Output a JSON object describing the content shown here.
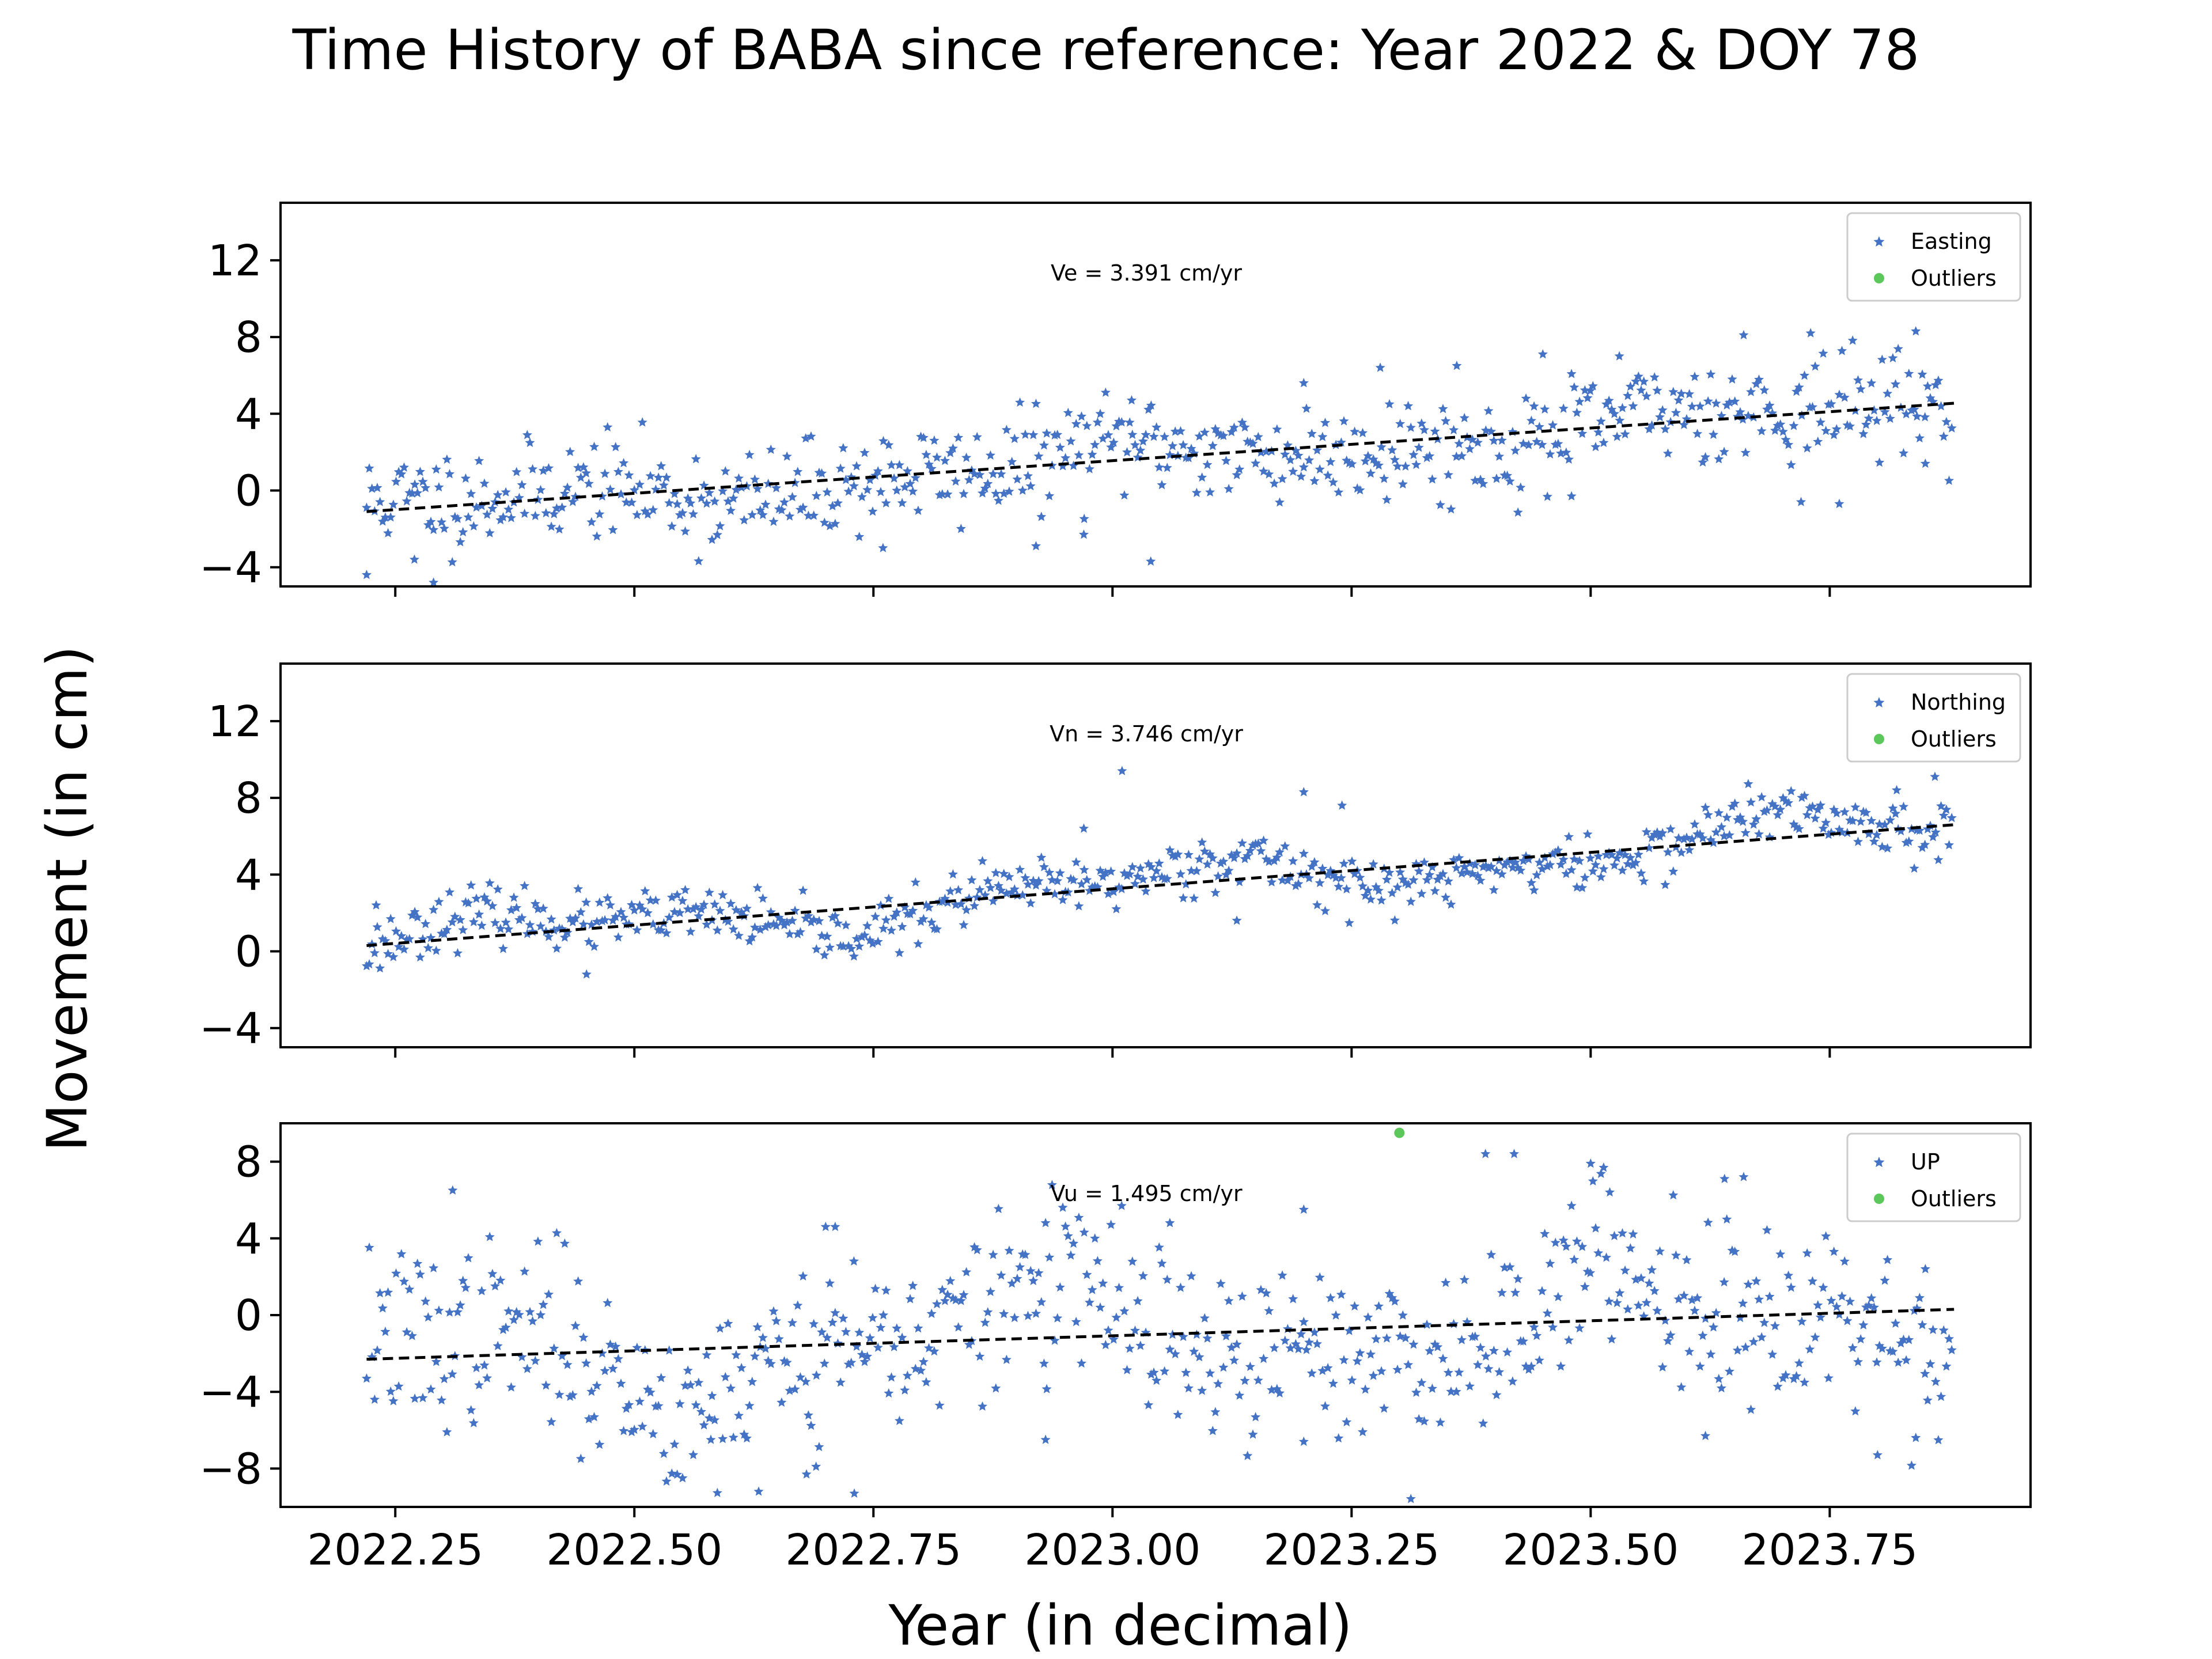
{
  "title": "Time History of BABA since reference: Year 2022 & DOY 78",
  "xlabel": "Year (in decimal)",
  "ylabel": "Movement (in cm)",
  "colors": {
    "data": "#4472c4",
    "outlier": "#5cc85c",
    "trend": "#000000"
  },
  "chart_data": [
    {
      "type": "scatter",
      "component": "Easting",
      "velocity_text": "Ve =  3.391 cm/yr",
      "legend": [
        "Easting",
        "Outliers"
      ],
      "xlim": [
        2022.13,
        2023.96
      ],
      "ylim": [
        -5,
        15
      ],
      "yticks": [
        -4,
        0,
        4,
        8,
        12
      ],
      "xticks": [
        2022.25,
        2022.5,
        2022.75,
        2023.0,
        2023.25,
        2023.5,
        2023.75
      ],
      "xtick_labels": [],
      "trend": {
        "x": [
          2022.22,
          2023.88
        ],
        "y": [
          -1.1,
          4.55
        ]
      },
      "series": [
        {
          "name": "Easting",
          "noise": 1.3,
          "wave": 0.6,
          "seed": 11,
          "extremes": [
            [
              2022.22,
              -4.4
            ],
            [
              2022.29,
              -4.8
            ],
            [
              2022.27,
              -3.6
            ],
            [
              2022.76,
              -3.0
            ],
            [
              2022.92,
              -2.9
            ],
            [
              2023.04,
              -3.7
            ],
            [
              2022.97,
              -2.3
            ],
            [
              2023.02,
              4.7
            ],
            [
              2023.2,
              5.6
            ],
            [
              2023.28,
              6.4
            ],
            [
              2023.36,
              6.5
            ],
            [
              2023.45,
              7.1
            ],
            [
              2023.53,
              7.0
            ],
            [
              2023.66,
              8.1
            ],
            [
              2023.73,
              8.2
            ],
            [
              2023.84,
              8.3
            ],
            [
              2023.48,
              -0.3
            ],
            [
              2023.72,
              -0.6
            ],
            [
              2023.76,
              -0.7
            ],
            [
              2023.85,
              1.4
            ]
          ]
        }
      ],
      "outliers": []
    },
    {
      "type": "scatter",
      "component": "Northing",
      "velocity_text": "Vn =  3.746 cm/yr",
      "legend": [
        "Northing",
        "Outliers"
      ],
      "xlim": [
        2022.13,
        2023.96
      ],
      "ylim": [
        -5,
        15
      ],
      "yticks": [
        -4,
        0,
        4,
        8,
        12
      ],
      "xticks": [
        2022.25,
        2022.5,
        2022.75,
        2023.0,
        2023.25,
        2023.5,
        2023.75
      ],
      "xtick_labels": [],
      "trend": {
        "x": [
          2022.22,
          2023.88
        ],
        "y": [
          0.3,
          6.6
        ]
      },
      "series": [
        {
          "name": "Northing",
          "noise": 0.7,
          "wave": 0.9,
          "seed": 23,
          "extremes": [
            [
              2023.01,
              9.4
            ],
            [
              2023.2,
              8.3
            ],
            [
              2023.24,
              7.6
            ],
            [
              2023.86,
              9.1
            ],
            [
              2023.82,
              8.4
            ],
            [
              2022.45,
              -1.2
            ],
            [
              2023.13,
              1.6
            ],
            [
              2022.23,
              2.4
            ],
            [
              2022.97,
              6.4
            ]
          ]
        }
      ],
      "outliers": []
    },
    {
      "type": "scatter",
      "component": "UP",
      "velocity_text": "Vu =  1.495 cm/yr",
      "legend": [
        "UP",
        "Outliers"
      ],
      "xlim": [
        2022.13,
        2023.96
      ],
      "ylim": [
        -10,
        10
      ],
      "yticks": [
        -8,
        -4,
        0,
        4,
        8
      ],
      "xticks": [
        2022.25,
        2022.5,
        2022.75,
        2023.0,
        2023.25,
        2023.5,
        2023.75
      ],
      "xtick_labels": [
        "2022.25",
        "2022.50",
        "2022.75",
        "2023.00",
        "2023.25",
        "2023.50",
        "2023.75"
      ],
      "trend": {
        "x": [
          2022.22,
          2023.88
        ],
        "y": [
          -2.3,
          0.3
        ]
      },
      "series": [
        {
          "name": "UP",
          "noise": 2.3,
          "wave": 2.0,
          "seed": 37,
          "extremes": [
            [
              2022.31,
              6.5
            ],
            [
              2022.7,
              4.6
            ],
            [
              2022.71,
              4.6
            ],
            [
              2022.93,
              4.8
            ],
            [
              2023.06,
              4.8
            ],
            [
              2023.2,
              5.5
            ],
            [
              2023.39,
              8.4
            ],
            [
              2023.42,
              8.4
            ],
            [
              2023.5,
              7.9
            ],
            [
              2023.52,
              6.4
            ],
            [
              2023.64,
              7.1
            ],
            [
              2023.66,
              7.2
            ],
            [
              2023.78,
              5.7
            ],
            [
              2023.85,
              2.4
            ],
            [
              2022.63,
              -9.2
            ],
            [
              2022.73,
              -9.3
            ],
            [
              2022.68,
              -8.3
            ],
            [
              2022.69,
              -7.9
            ],
            [
              2022.58,
              -6.5
            ],
            [
              2022.93,
              -6.5
            ],
            [
              2023.2,
              -6.6
            ],
            [
              2023.62,
              -6.3
            ],
            [
              2023.8,
              -7.3
            ],
            [
              2023.84,
              -6.4
            ]
          ]
        }
      ],
      "outliers": [
        {
          "x": 2023.3,
          "y": 9.5
        }
      ]
    }
  ]
}
